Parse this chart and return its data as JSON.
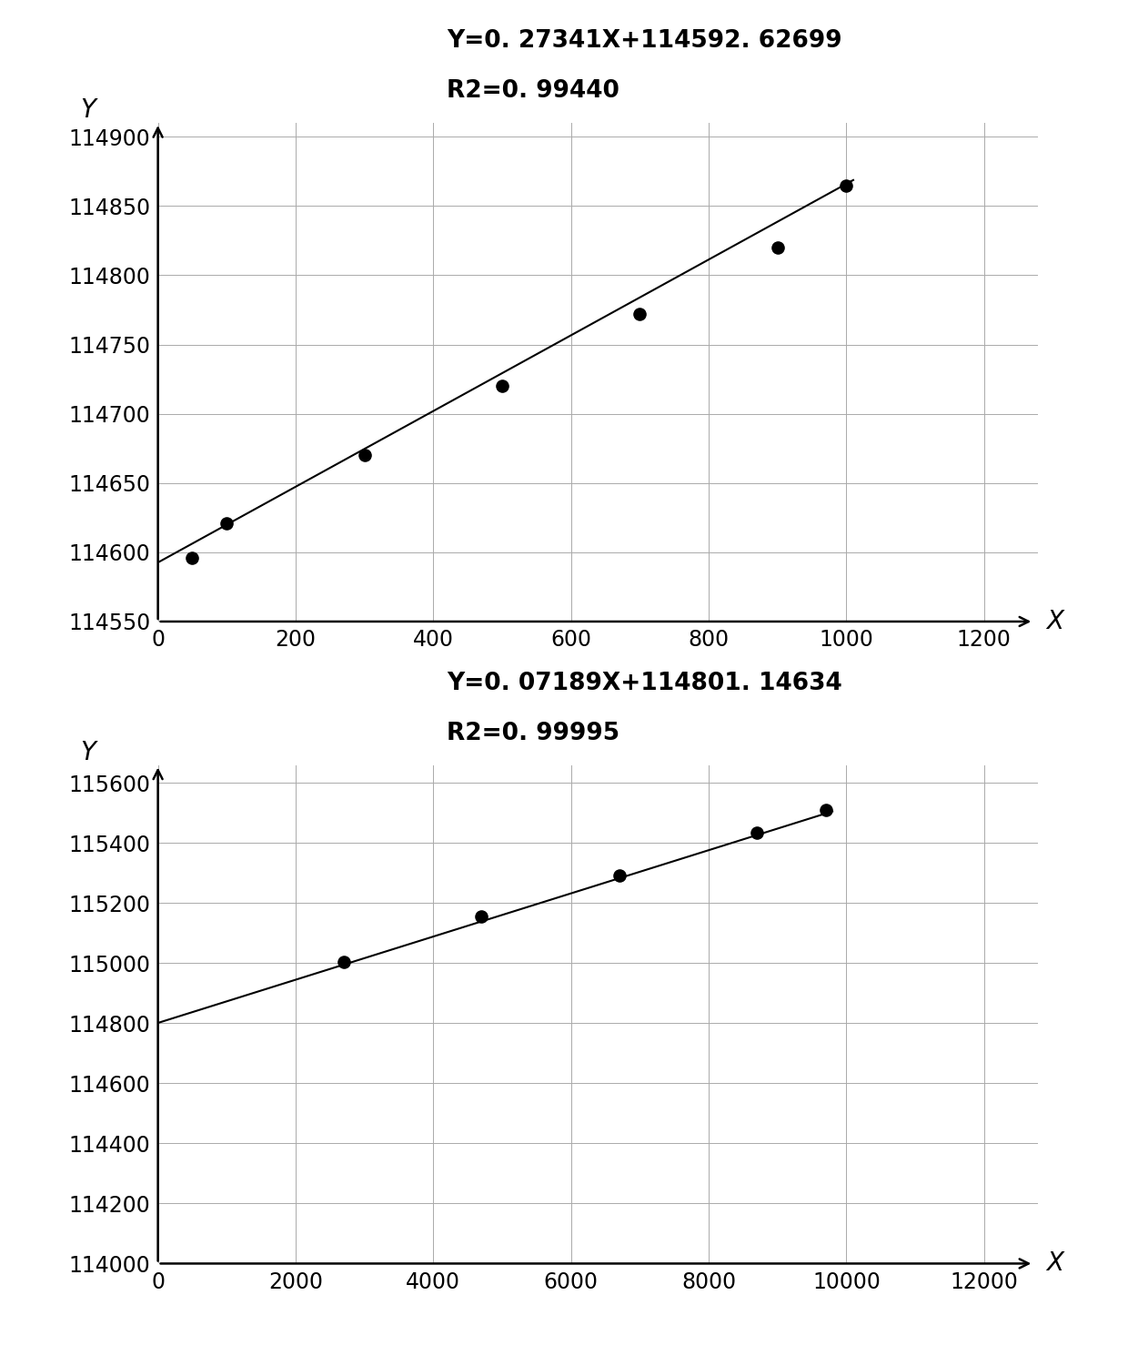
{
  "chart1": {
    "x": [
      50,
      100,
      300,
      500,
      700,
      900,
      1000
    ],
    "y": [
      114596,
      114621,
      114670,
      114720,
      114772,
      114820,
      114865
    ],
    "slope": 0.27341,
    "intercept": 114592.62699,
    "equation": "Y=0. 27341X+114592. 62699",
    "r2_label": "R2=0. 99440",
    "xlim": [
      0,
      1200
    ],
    "ylim": [
      114550,
      114910
    ],
    "xticks": [
      0,
      200,
      400,
      600,
      800,
      1000,
      1200
    ],
    "yticks": [
      114550,
      114600,
      114650,
      114700,
      114750,
      114800,
      114850,
      114900
    ],
    "xlabel": "X",
    "ylabel": "Y"
  },
  "chart2": {
    "x": [
      2700,
      4700,
      6700,
      8700,
      9700
    ],
    "y": [
      115005,
      115155,
      115293,
      115435,
      115510
    ],
    "slope": 0.07189,
    "intercept": 114801.14634,
    "equation": "Y=0. 07189X+114801. 14634",
    "r2_label": "R2=0. 99995",
    "xlim": [
      0,
      12000
    ],
    "ylim": [
      114000,
      115660
    ],
    "xticks": [
      0,
      2000,
      4000,
      6000,
      8000,
      10000,
      12000
    ],
    "yticks": [
      114000,
      114200,
      114400,
      114600,
      114800,
      115000,
      115200,
      115400,
      115600
    ],
    "xlabel": "X",
    "ylabel": "Y"
  },
  "bg_color": "#ffffff",
  "line_color": "#000000",
  "dot_color": "#000000",
  "grid_color": "#aaaaaa",
  "font_size_eq": 19,
  "font_size_tick": 17,
  "font_size_label": 20,
  "dot_size": 90,
  "line_width": 1.5,
  "grid_linewidth": 0.7
}
